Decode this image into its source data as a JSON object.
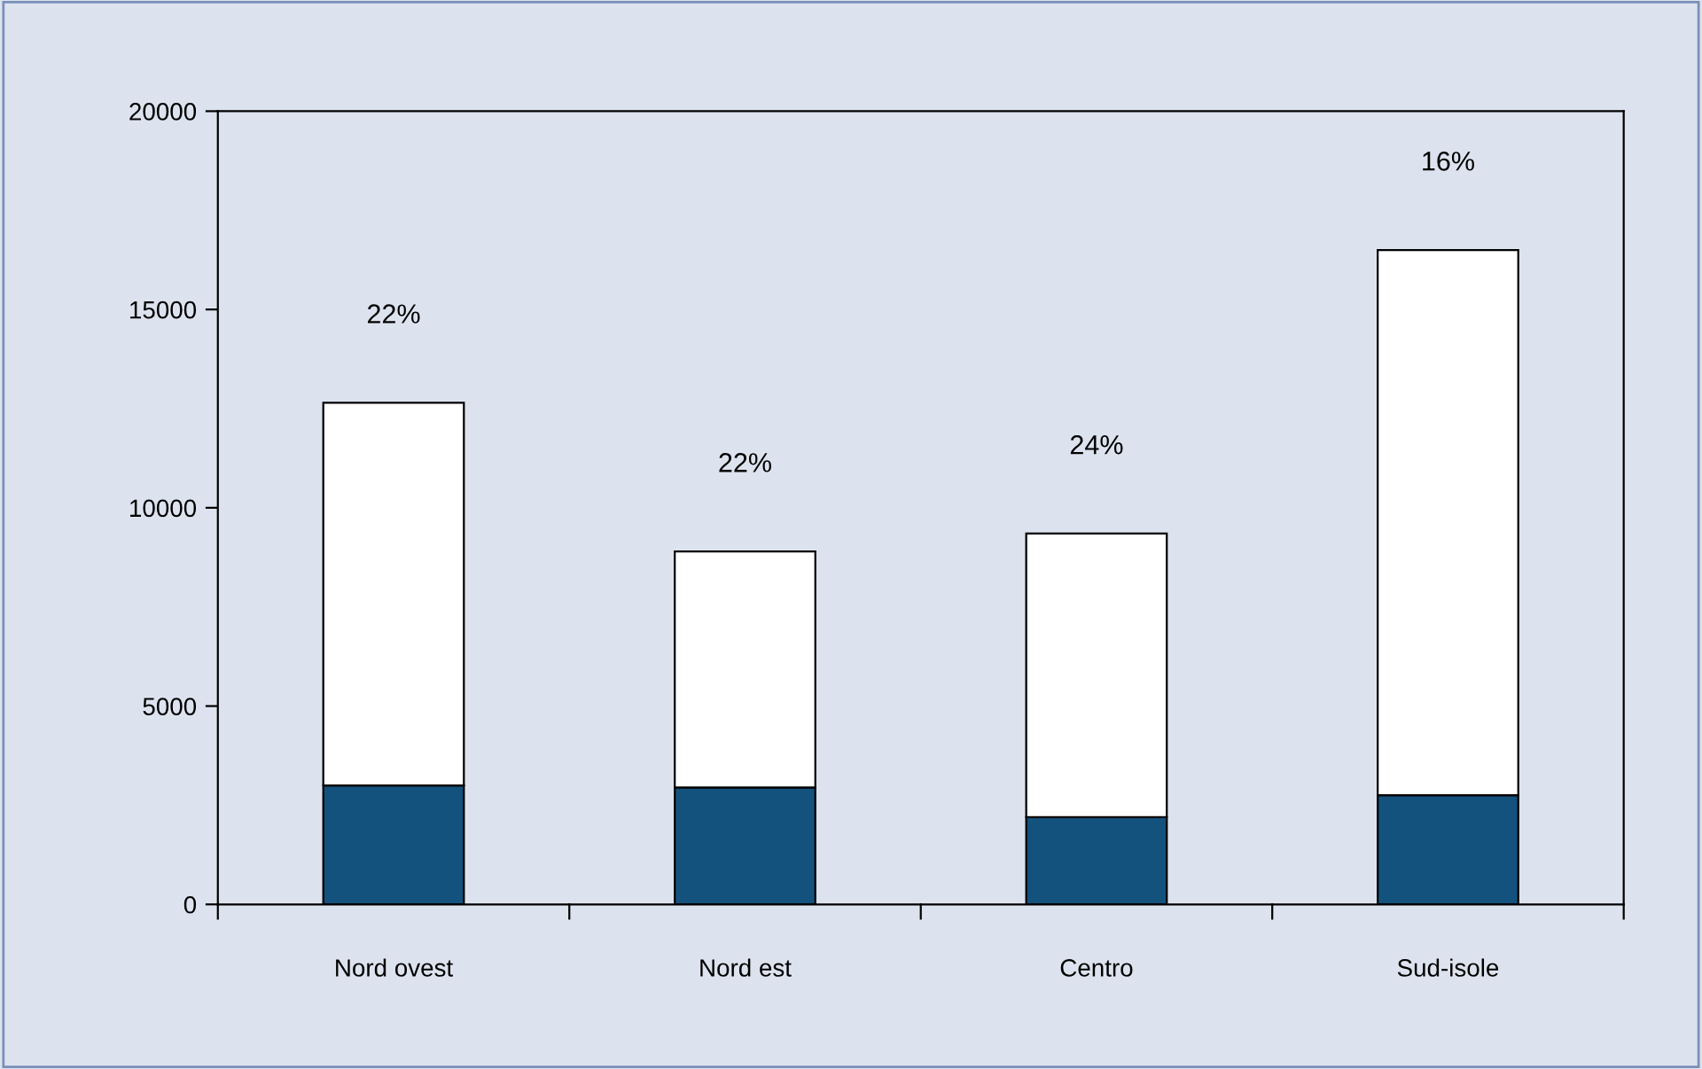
{
  "chart_data": {
    "type": "bar",
    "stacked": true,
    "categories": [
      "Nord ovest",
      "Nord est",
      "Centro",
      "Sud-isole"
    ],
    "series": [
      {
        "color": "#14527e",
        "values": [
          3000,
          2950,
          2200,
          2750
        ]
      },
      {
        "color": "#ffffff",
        "values": [
          9650,
          5950,
          7150,
          13750
        ]
      }
    ],
    "ylim": [
      0,
      20000
    ],
    "yticks": [
      0,
      5000,
      10000,
      15000,
      20000
    ],
    "grid": false,
    "legend": false,
    "annotations": [
      {
        "text": "22%",
        "x": "Nord ovest",
        "y": 12650
      },
      {
        "text": "22%",
        "x": "Nord est",
        "y": 8900
      },
      {
        "text": "24%",
        "x": "Centro",
        "y": 9350
      },
      {
        "text": "16%",
        "x": "Sud-isole",
        "y": 16500
      }
    ]
  }
}
